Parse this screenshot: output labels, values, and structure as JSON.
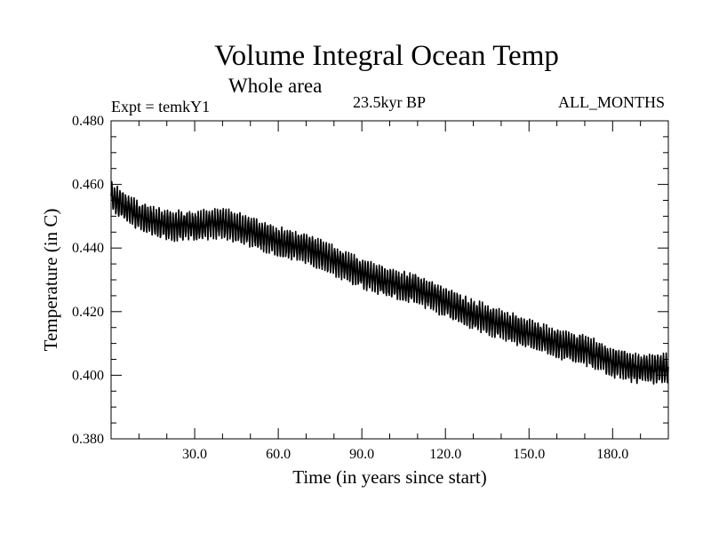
{
  "chart_data": {
    "type": "line",
    "title": "Volume Integral Ocean Temp",
    "subtitle": "Whole area",
    "left_label": "Expt = temkY1",
    "center_label": "23.5kyr BP",
    "right_label": "ALL_MONTHS",
    "xlabel": "Time (in years since start)",
    "ylabel": "Temperature (in C)",
    "xlim": [
      0,
      200
    ],
    "ylim": [
      0.38,
      0.48
    ],
    "x_ticks": [
      30,
      60,
      90,
      120,
      150,
      180
    ],
    "x_tick_labels": [
      "30.0",
      "60.0",
      "90.0",
      "120.0",
      "150.0",
      "180.0"
    ],
    "y_ticks": [
      0.38,
      0.4,
      0.42,
      0.44,
      0.46,
      0.48
    ],
    "y_tick_labels": [
      "0.380",
      "0.400",
      "0.420",
      "0.440",
      "0.460",
      "0.480"
    ],
    "series": [
      {
        "name": "Volume Integral Ocean Temp",
        "description": "monthly values with seasonal cycle, amplitude ~0.004 C",
        "trend_x": [
          0,
          10,
          20,
          30,
          40,
          50,
          60,
          70,
          80,
          90,
          100,
          110,
          120,
          130,
          140,
          150,
          160,
          170,
          180,
          190,
          200
        ],
        "trend_y": [
          0.456,
          0.45,
          0.447,
          0.447,
          0.448,
          0.445,
          0.442,
          0.44,
          0.436,
          0.432,
          0.429,
          0.427,
          0.423,
          0.419,
          0.416,
          0.413,
          0.41,
          0.408,
          0.404,
          0.402,
          0.402
        ],
        "seasonal_amplitude": 0.004
      }
    ]
  }
}
